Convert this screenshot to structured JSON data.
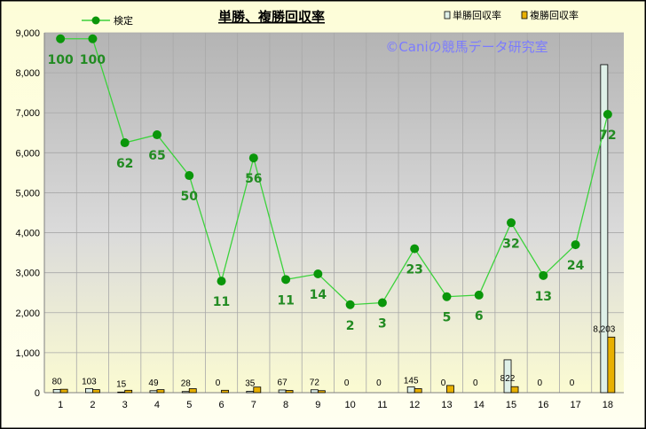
{
  "chart_data": {
    "type": "bar",
    "title": "単勝、複勝回収率",
    "watermark": "©Caniの競馬データ研究室",
    "categories": [
      "1",
      "2",
      "3",
      "4",
      "5",
      "6",
      "7",
      "8",
      "9",
      "10",
      "11",
      "12",
      "13",
      "14",
      "15",
      "16",
      "17",
      "18"
    ],
    "ylim": [
      0,
      9000
    ],
    "yticks": [
      "0",
      "1,000",
      "2,000",
      "3,000",
      "4,000",
      "5,000",
      "6,000",
      "7,000",
      "8,000",
      "9,000"
    ],
    "series": [
      {
        "name": "単勝回収率",
        "kind": "bar",
        "color": "#dff0e8",
        "values": [
          80,
          103,
          15,
          49,
          28,
          0,
          35,
          67,
          72,
          0,
          0,
          145,
          0,
          0,
          822,
          0,
          0,
          8203
        ],
        "labels": [
          "80",
          "103",
          "15",
          "49",
          "28",
          "0",
          "35",
          "67",
          "72",
          "0",
          "0",
          "145",
          "0",
          "0",
          "822",
          "0",
          "0",
          "8,203"
        ]
      },
      {
        "name": "複勝回収率",
        "kind": "bar",
        "color": "#e8b000",
        "values": [
          85,
          75,
          60,
          75,
          100,
          60,
          140,
          55,
          50,
          0,
          0,
          100,
          180,
          0,
          150,
          0,
          0,
          1390
        ]
      },
      {
        "name": "検定",
        "kind": "line",
        "color": "#3cd23c",
        "marker": "#0a960a",
        "values": [
          8850,
          8850,
          6250,
          6450,
          5430,
          2790,
          5870,
          2830,
          2970,
          2200,
          2250,
          3600,
          2400,
          2440,
          4250,
          2930,
          3700,
          6960
        ],
        "labels": [
          "100",
          "100",
          "62",
          "65",
          "50",
          "11",
          "56",
          "11",
          "14",
          "2",
          "3",
          "23",
          "5",
          "6",
          "32",
          "13",
          "24",
          "72"
        ]
      }
    ],
    "grid": true,
    "legend": "top"
  }
}
